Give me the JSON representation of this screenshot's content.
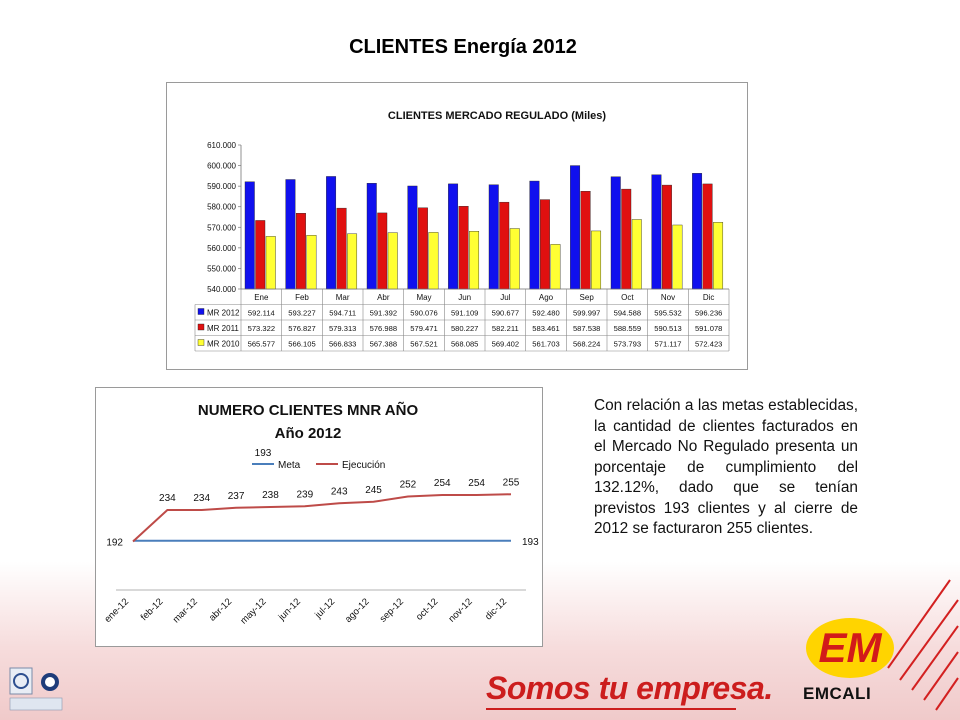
{
  "slide": {
    "title": "CLIENTES Energía 2012",
    "commentary": "Con relación a las metas establecidas, la cantidad de clientes facturados en el Mercado No Regulado presenta un porcentaje de cumplimiento del 132.12%, dado que se tenían previstos 193 clientes y al cierre de 2012 se facturaron 255 clientes."
  },
  "footer": {
    "slogan": "Somos tu empresa.",
    "brand": "EMCALI",
    "brand_mark": "EM"
  },
  "colors": {
    "mr2012": "#1010ee",
    "mr2011": "#e01010",
    "mr2010": "#ffff33",
    "meta": "#4a7ebb",
    "ejecucion": "#be4b48",
    "brand_red": "#cc1d1d"
  },
  "chart_data": [
    {
      "type": "bar",
      "title": "CLIENTES MERCADO REGULADO (Miles)",
      "categories": [
        "Ene",
        "Feb",
        "Mar",
        "Abr",
        "May",
        "Jun",
        "Jul",
        "Ago",
        "Sep",
        "Oct",
        "Nov",
        "Dic"
      ],
      "series": [
        {
          "name": "MR 2012",
          "values": [
            592.114,
            593.227,
            594.711,
            591.392,
            590.076,
            591.109,
            590.677,
            592.48,
            599.997,
            594.588,
            595.532,
            596.236
          ],
          "labels": [
            "592.114",
            "593.227",
            "594.711",
            "591.392",
            "590.076",
            "591.109",
            "590.677",
            "592.480",
            "599.997",
            "594.588",
            "595.532",
            "596.236"
          ]
        },
        {
          "name": "MR 2011",
          "values": [
            573.322,
            576.827,
            579.313,
            576.988,
            579.471,
            580.227,
            582.211,
            583.461,
            587.538,
            588.559,
            590.513,
            591.078
          ],
          "labels": [
            "573.322",
            "576.827",
            "579.313",
            "576.988",
            "579.471",
            "580.227",
            "582.211",
            "583.461",
            "587.538",
            "588.559",
            "590.513",
            "591.078"
          ]
        },
        {
          "name": "MR 2010",
          "values": [
            565.577,
            566.105,
            566.833,
            567.388,
            567.521,
            568.085,
            569.402,
            561.703,
            568.224,
            573.793,
            571.117,
            572.423
          ],
          "labels": [
            "565.577",
            "566.105",
            "566.833",
            "567.388",
            "567.521",
            "568.085",
            "569.402",
            "561.703",
            "568.224",
            "573.793",
            "571.117",
            "572.423"
          ]
        }
      ],
      "ylim": [
        540,
        610
      ],
      "yticks": [
        540,
        550,
        560,
        570,
        580,
        590,
        600,
        610
      ],
      "ytick_labels": [
        "540.000",
        "550.000",
        "560.000",
        "570.000",
        "580.000",
        "590.000",
        "600.000",
        "610.000"
      ],
      "legend": "data table below plot",
      "grid": false
    },
    {
      "type": "line",
      "title": "NUMERO CLIENTES MNR AÑO",
      "subtitle": "Año 2012",
      "categories": [
        "ene-12",
        "feb-12",
        "mar-12",
        "abr-12",
        "may-12",
        "jun-12",
        "jul-12",
        "ago-12",
        "sep-12",
        "oct-12",
        "nov-12",
        "dic-12"
      ],
      "series": [
        {
          "name": "Meta",
          "values": [
            193,
            193,
            193,
            193,
            193,
            193,
            193,
            193,
            193,
            193,
            193,
            193
          ]
        },
        {
          "name": "Ejecución",
          "values": [
            192,
            234,
            234,
            237,
            238,
            239,
            243,
            245,
            252,
            254,
            254,
            255
          ]
        }
      ],
      "data_labels": [
        {
          "series": "Ejecución",
          "index": 0,
          "text": "192"
        },
        {
          "series": "Ejecución",
          "index": 1,
          "text": "234"
        },
        {
          "series": "Ejecución",
          "index": 2,
          "text": "234"
        },
        {
          "series": "Ejecución",
          "index": 3,
          "text": "237"
        },
        {
          "series": "Ejecución",
          "index": 4,
          "text": "238"
        },
        {
          "series": "Ejecución",
          "index": 5,
          "text": "239"
        },
        {
          "series": "Ejecución",
          "index": 6,
          "text": "243"
        },
        {
          "series": "Ejecución",
          "index": 7,
          "text": "245"
        },
        {
          "series": "Ejecución",
          "index": 8,
          "text": "252"
        },
        {
          "series": "Ejecución",
          "index": 9,
          "text": "254"
        },
        {
          "series": "Ejecución",
          "index": 10,
          "text": "254"
        },
        {
          "series": "Ejecución",
          "index": 11,
          "text": "255"
        },
        {
          "series": "Meta",
          "index": 11,
          "text": "193"
        },
        {
          "series": "Meta",
          "index": 0,
          "text": "193",
          "note": "printed near legend"
        }
      ],
      "legend": "top",
      "grid": false
    }
  ]
}
